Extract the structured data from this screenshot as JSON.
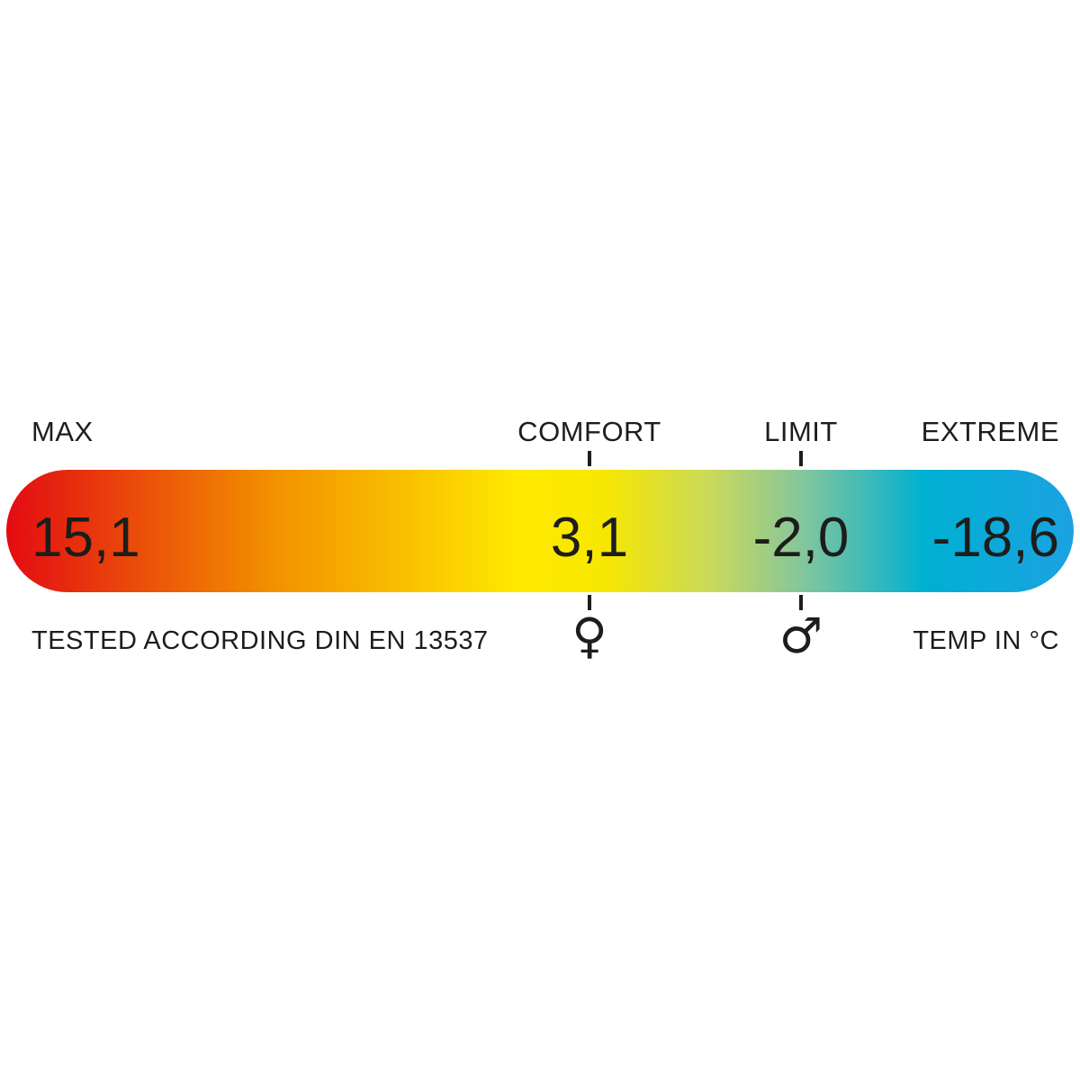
{
  "scale": {
    "points": [
      {
        "key": "max",
        "label": "MAX",
        "value": "15,1",
        "position_pct": 0
      },
      {
        "key": "comfort",
        "label": "COMFORT",
        "value": "3,1",
        "position_pct": 54.6,
        "symbol": "♀",
        "symbol_name": "female-icon"
      },
      {
        "key": "limit",
        "label": "LIMIT",
        "value": "-2,0",
        "position_pct": 74.5,
        "symbol": "♂",
        "symbol_name": "male-icon"
      },
      {
        "key": "extreme",
        "label": "EXTREME",
        "value": "-18,6",
        "position_pct": 100
      }
    ],
    "footnote_left": "TESTED ACCORDING DIN EN 13537",
    "unit_label": "TEMP IN °C",
    "colors": {
      "text": "#1d1d1b",
      "background": "#ffffff",
      "gradient": [
        {
          "pos": 0,
          "color": "#e30b13"
        },
        {
          "pos": 25,
          "color": "#f29100"
        },
        {
          "pos": 48,
          "color": "#ffe900"
        },
        {
          "pos": 56,
          "color": "#f7e700"
        },
        {
          "pos": 66,
          "color": "#c9d95b"
        },
        {
          "pos": 74.5,
          "color": "#85c69c"
        },
        {
          "pos": 86,
          "color": "#00b0d2"
        },
        {
          "pos": 100,
          "color": "#1ba2e1"
        }
      ]
    }
  },
  "chart_data": {
    "type": "bar",
    "subtype": "temperature-gradient-scale",
    "title": "",
    "categories": [
      "MAX",
      "COMFORT",
      "LIMIT",
      "EXTREME"
    ],
    "values": [
      15.1,
      3.1,
      -2.0,
      -18.6
    ],
    "value_labels": [
      "15,1",
      "3,1",
      "-2,0",
      "-18,6"
    ],
    "unit": "°C",
    "xlabel": "TEMP IN °C",
    "ylabel": "",
    "annotations": [
      "TESTED ACCORDING DIN EN 13537",
      "TEMP IN °C"
    ],
    "point_symbols": {
      "COMFORT": "female (♀)",
      "LIMIT": "male (♂)"
    },
    "layout_hints": {
      "orientation": "horizontal single gradient bar, rounded ends",
      "gradient_left_to_right": [
        "red",
        "orange",
        "yellow",
        "yellow-green",
        "green",
        "teal",
        "blue"
      ],
      "tick_marks_above_and_below": [
        "COMFORT",
        "LIMIT"
      ]
    }
  }
}
